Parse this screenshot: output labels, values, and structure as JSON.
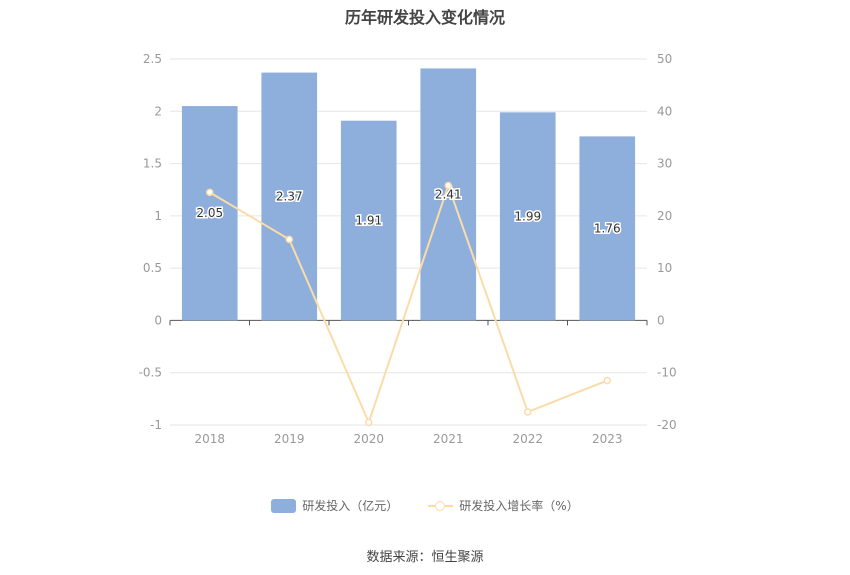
{
  "chart_data": {
    "type": "bar",
    "title": "历年研发投入变化情况",
    "categories": [
      "2018",
      "2019",
      "2020",
      "2021",
      "2022",
      "2023"
    ],
    "series": [
      {
        "name": "研发投入（亿元）",
        "type": "bar",
        "axis": "left",
        "values": [
          2.05,
          2.37,
          1.91,
          2.41,
          1.99,
          1.76
        ],
        "labels": [
          "2.05",
          "2.37",
          "1.91",
          "2.41",
          "1.99",
          "1.76"
        ]
      },
      {
        "name": "研发投入增长率（%）",
        "type": "line",
        "axis": "right",
        "values": [
          24.5,
          15.5,
          -19.5,
          25.8,
          -17.5,
          -11.5
        ]
      }
    ],
    "y_left": {
      "min": -1,
      "max": 2.5,
      "ticks": [
        "2.5",
        "2",
        "1.5",
        "1",
        "0.5",
        "0",
        "-0.5",
        "-1"
      ]
    },
    "y_right": {
      "min": -20,
      "max": 50,
      "ticks": [
        "50",
        "40",
        "30",
        "20",
        "10",
        "0",
        "-10",
        "-20"
      ]
    },
    "grid": true,
    "legend_position": "bottom",
    "colors": {
      "bar": "#8eaedb",
      "line": "#fbdca8"
    }
  },
  "source": "数据来源：恒生聚源"
}
